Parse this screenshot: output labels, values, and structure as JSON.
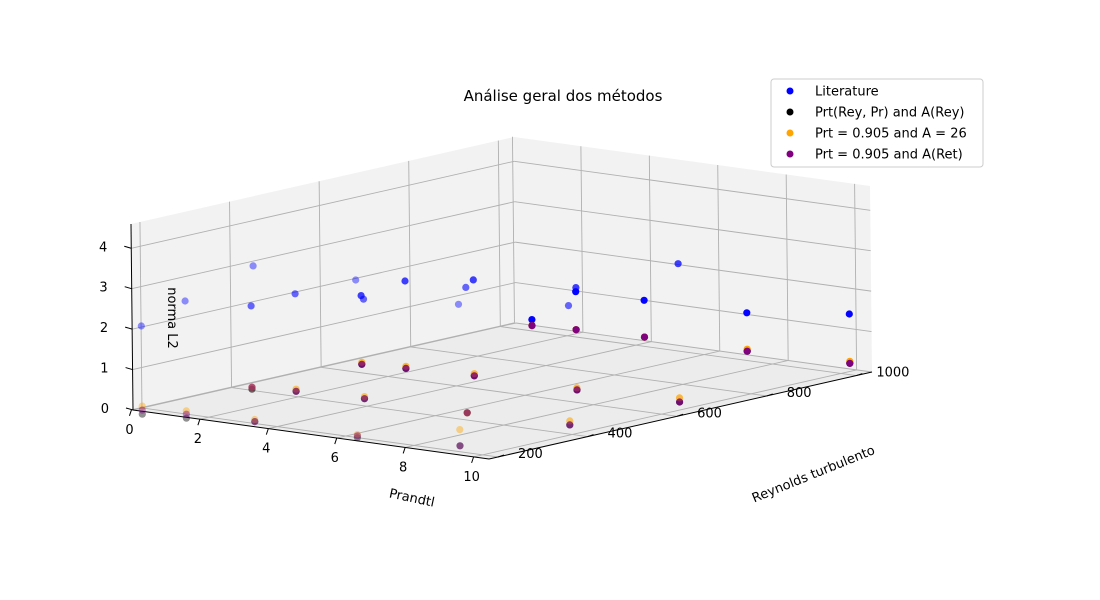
{
  "chart_data": {
    "type": "scatter",
    "title": "Análise geral dos métodos",
    "xlabel": "Reynolds turbulento",
    "ylabel": "Prandtl",
    "zlabel": "norma L2",
    "x_ticks": [
      "200",
      "400",
      "600",
      "800",
      "1000"
    ],
    "y_ticks": [
      "0",
      "2",
      "4",
      "6",
      "8",
      "10"
    ],
    "z_ticks": [
      "0",
      "1",
      "2",
      "3",
      "4"
    ],
    "legend_placement": "top-right",
    "grid": true,
    "series": [
      {
        "name": "Literature",
        "color": "#0000ff",
        "points": [
          [
            150,
            0.71,
            2.23
          ],
          [
            150,
            2.0,
            3.0
          ],
          [
            150,
            4.0,
            4.1
          ],
          [
            150,
            7.0,
            4.1
          ],
          [
            150,
            10.0,
            3.85
          ],
          [
            395,
            0.71,
            2.11
          ],
          [
            395,
            2.0,
            2.56
          ],
          [
            395,
            4.0,
            2.66
          ],
          [
            395,
            7.0,
            3.3
          ],
          [
            395,
            10.0,
            3.2
          ],
          [
            640,
            0.71,
            1.75
          ],
          [
            640,
            2.0,
            2.26
          ],
          [
            640,
            4.0,
            2.52
          ],
          [
            640,
            7.0,
            2.68
          ],
          [
            640,
            10.0,
            3.62
          ],
          [
            1020,
            0.71,
            0.2
          ],
          [
            1020,
            2.0,
            1.04
          ],
          [
            1020,
            4.0,
            1.06
          ],
          [
            1020,
            7.0,
            1.1
          ],
          [
            1020,
            10.0,
            1.42
          ]
        ]
      },
      {
        "name": "Prt(Rey, Pr) and A(Rey)",
        "color": "#000000",
        "points": [
          [
            150,
            0.71,
            0.05
          ],
          [
            150,
            2.0,
            0.1
          ],
          [
            150,
            4.0,
            0.25
          ],
          [
            150,
            7.0,
            0.2
          ],
          [
            150,
            10.0,
            0.35
          ],
          [
            395,
            0.71,
            0.05
          ],
          [
            395,
            2.0,
            0.15
          ],
          [
            395,
            4.0,
            0.2
          ],
          [
            395,
            7.0,
            0.2
          ],
          [
            395,
            10.0,
            0.25
          ],
          [
            640,
            0.71,
            0.05
          ],
          [
            640,
            2.0,
            0.1
          ],
          [
            640,
            4.0,
            0.15
          ],
          [
            640,
            7.0,
            0.15
          ],
          [
            640,
            10.0,
            0.2
          ],
          [
            1020,
            0.71,
            0.05
          ],
          [
            1020,
            2.0,
            0.1
          ],
          [
            1020,
            4.0,
            0.15
          ],
          [
            1020,
            7.0,
            0.15
          ],
          [
            1020,
            10.0,
            0.2
          ]
        ]
      },
      {
        "name": "Prt = 0.905 and A = 26",
        "color": "#ffa500",
        "points": [
          [
            150,
            0.71,
            0.25
          ],
          [
            150,
            2.0,
            0.28
          ],
          [
            150,
            4.0,
            0.3
          ],
          [
            150,
            7.0,
            0.28
          ],
          [
            150,
            10.0,
            0.75
          ],
          [
            395,
            0.71,
            0.1
          ],
          [
            395,
            2.0,
            0.2
          ],
          [
            395,
            4.0,
            0.25
          ],
          [
            395,
            7.0,
            0.2
          ],
          [
            395,
            10.0,
            0.35
          ],
          [
            640,
            0.71,
            0.1
          ],
          [
            640,
            2.0,
            0.15
          ],
          [
            640,
            4.0,
            0.2
          ],
          [
            640,
            7.0,
            0.2
          ],
          [
            640,
            10.0,
            0.3
          ],
          [
            1020,
            0.71,
            0.05
          ],
          [
            1020,
            2.0,
            0.1
          ],
          [
            1020,
            4.0,
            0.15
          ],
          [
            1020,
            7.0,
            0.2
          ],
          [
            1020,
            10.0,
            0.25
          ]
        ]
      },
      {
        "name": "Prt = 0.905 and A(Ret)",
        "color": "#800080",
        "points": [
          [
            150,
            0.71,
            0.15
          ],
          [
            150,
            2.0,
            0.2
          ],
          [
            150,
            4.0,
            0.25
          ],
          [
            150,
            7.0,
            0.25
          ],
          [
            150,
            10.0,
            0.35
          ],
          [
            395,
            0.71,
            0.1
          ],
          [
            395,
            2.0,
            0.15
          ],
          [
            395,
            4.0,
            0.2
          ],
          [
            395,
            7.0,
            0.2
          ],
          [
            395,
            10.0,
            0.25
          ],
          [
            640,
            0.71,
            0.05
          ],
          [
            640,
            2.0,
            0.1
          ],
          [
            640,
            4.0,
            0.15
          ],
          [
            640,
            7.0,
            0.15
          ],
          [
            640,
            10.0,
            0.2
          ],
          [
            1020,
            0.71,
            0.05
          ],
          [
            1020,
            2.0,
            0.1
          ],
          [
            1020,
            4.0,
            0.15
          ],
          [
            1020,
            7.0,
            0.15
          ],
          [
            1020,
            10.0,
            0.2
          ]
        ]
      }
    ]
  }
}
